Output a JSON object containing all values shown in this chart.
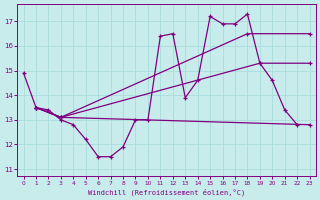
{
  "title": "",
  "xlabel": "Windchill (Refroidissement éolien,°C)",
  "bg_color": "#c8ecec",
  "grid_color": "#aadddd",
  "line_color": "#800080",
  "xlim": [
    -0.5,
    23.5
  ],
  "ylim": [
    10.7,
    17.7
  ],
  "yticks": [
    11,
    12,
    13,
    14,
    15,
    16,
    17
  ],
  "xticks": [
    0,
    1,
    2,
    3,
    4,
    5,
    6,
    7,
    8,
    9,
    10,
    11,
    12,
    13,
    14,
    15,
    16,
    17,
    18,
    19,
    20,
    21,
    22,
    23
  ],
  "series1_x": [
    0,
    1,
    2,
    3,
    4,
    5,
    6,
    7,
    8,
    9,
    10,
    11,
    12,
    13,
    14,
    15,
    16,
    17,
    18,
    19,
    20,
    21,
    22
  ],
  "series1_y": [
    14.9,
    13.5,
    13.4,
    13.0,
    12.8,
    12.2,
    11.5,
    11.5,
    11.9,
    13.0,
    13.0,
    16.4,
    16.5,
    13.9,
    14.6,
    17.2,
    16.9,
    16.9,
    17.3,
    15.3,
    14.6,
    13.4,
    12.8
  ],
  "series2_x": [
    1,
    3,
    23
  ],
  "series2_y": [
    13.5,
    13.1,
    12.8
  ],
  "series3_x": [
    1,
    3,
    18,
    23
  ],
  "series3_y": [
    13.5,
    13.1,
    16.5,
    16.5
  ],
  "series4_x": [
    1,
    3,
    19,
    23
  ],
  "series4_y": [
    13.5,
    13.1,
    15.3,
    15.3
  ]
}
